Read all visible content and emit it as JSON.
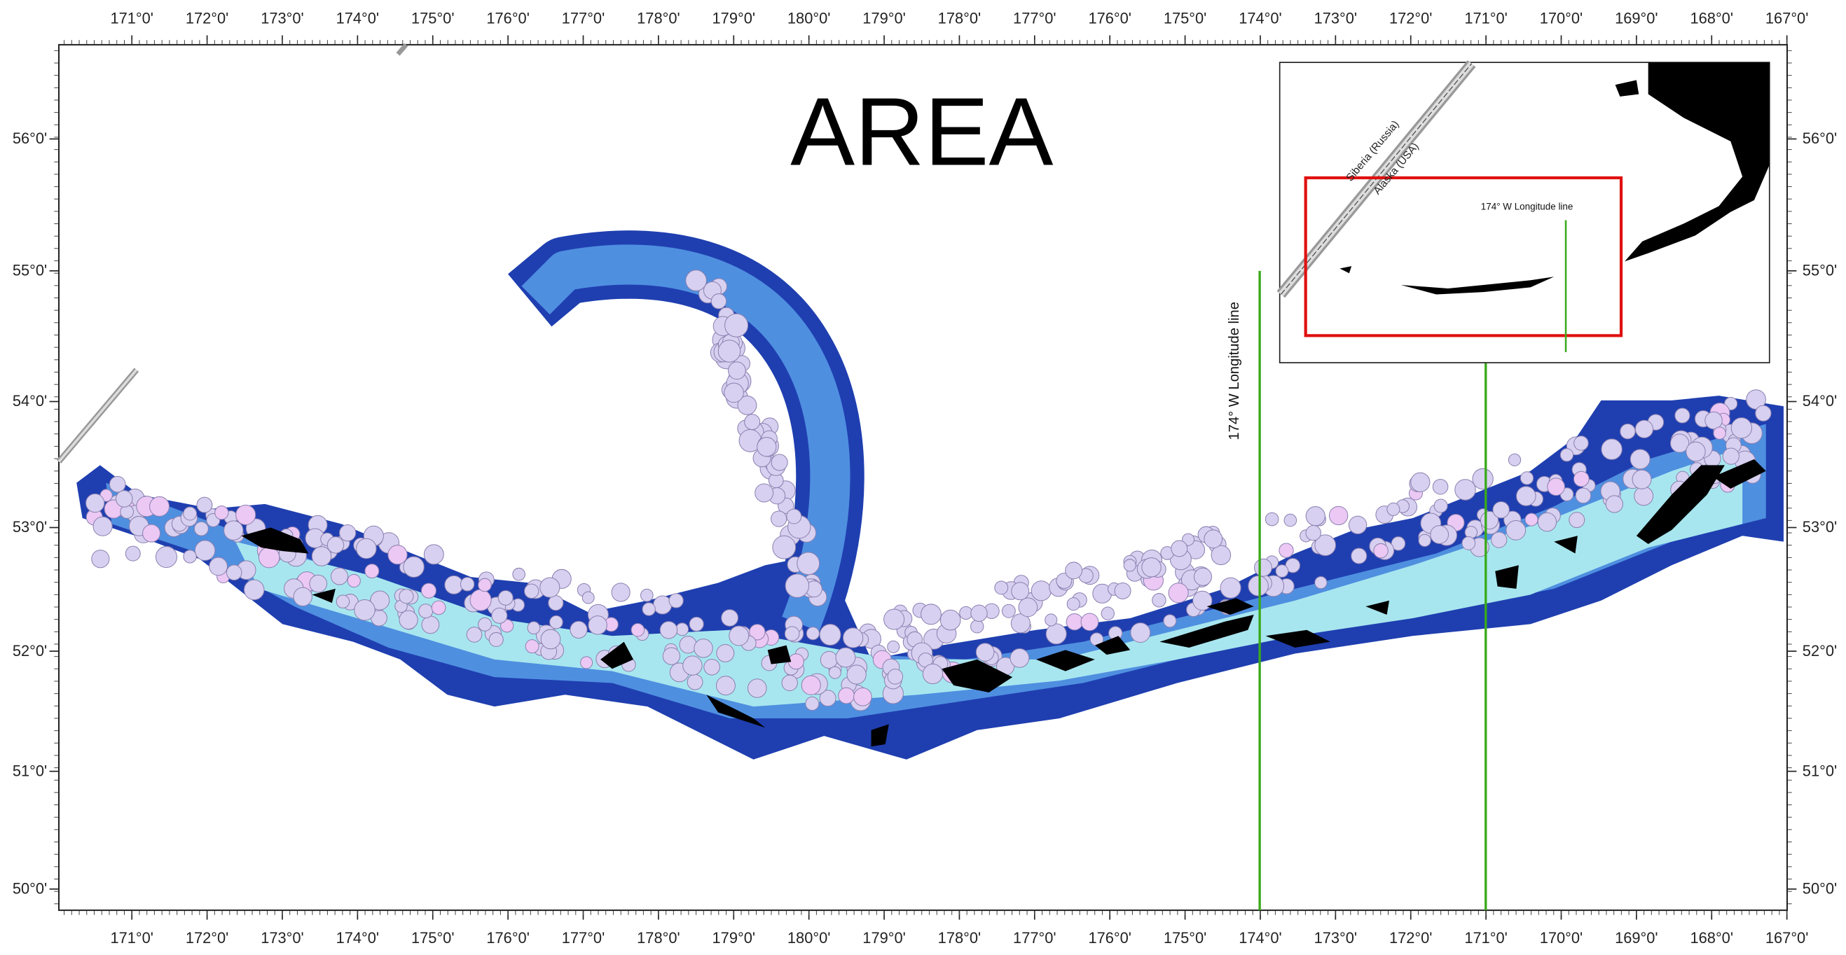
{
  "title": "AREA",
  "longitude_labels": [
    "171°0'",
    "172°0'",
    "173°0'",
    "174°0'",
    "175°0'",
    "176°0'",
    "177°0'",
    "178°0'",
    "179°0'",
    "180°0'",
    "179°0'",
    "178°0'",
    "177°0'",
    "176°0'",
    "175°0'",
    "174°0'",
    "173°0'",
    "172°0'",
    "171°0'",
    "170°0'",
    "169°0'",
    "168°0'",
    "167°0'"
  ],
  "latitude_labels": [
    "56°0'",
    "55°0'",
    "54°0'",
    "53°0'",
    "52°0'",
    "51°0'",
    "50°0'"
  ],
  "annotation": "174° W Longitude line",
  "inset": {
    "labels": [
      "Siberia (Russia)",
      "Alaska (USA)"
    ],
    "annotation": "174° W Longitude line"
  }
}
